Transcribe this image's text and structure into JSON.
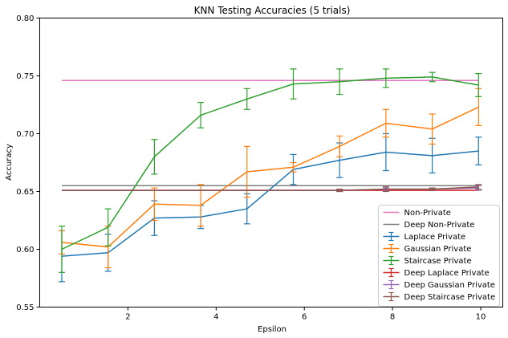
{
  "chart_data": {
    "type": "line",
    "title": "KNN Testing Accuracies (5 trials)",
    "xlabel": "Epsilon",
    "ylabel": "Accuracy",
    "xlim": [
      0.0,
      10.5
    ],
    "ylim": [
      0.55,
      0.8
    ],
    "xticks": [
      "2",
      "4",
      "6",
      "8",
      "10"
    ],
    "xtick_values": [
      2,
      4,
      6,
      8,
      10
    ],
    "yticks": [
      "0.55",
      "0.60",
      "0.65",
      "0.70",
      "0.75",
      "0.80"
    ],
    "ytick_values": [
      0.55,
      0.6,
      0.65,
      0.7,
      0.75,
      0.8
    ],
    "grid": false,
    "legend_position": "lower-right",
    "x": [
      0.5,
      1.55,
      2.6,
      3.65,
      4.7,
      5.75,
      6.8,
      7.85,
      8.9,
      9.95
    ],
    "horizontal_lines": [
      {
        "name": "Non-Private",
        "value": 0.746,
        "color": "#e377c2"
      },
      {
        "name": "Deep Non-Private",
        "value": 0.655,
        "color": "#7f7f7f"
      }
    ],
    "series": [
      {
        "name": "Laplace Private",
        "color": "#1f77b4",
        "values": [
          0.594,
          0.597,
          0.627,
          0.628,
          0.635,
          0.669,
          0.677,
          0.684,
          0.681,
          0.685
        ],
        "errors": [
          0.022,
          0.016,
          0.015,
          0.01,
          0.013,
          0.013,
          0.015,
          0.016,
          0.015,
          0.012
        ]
      },
      {
        "name": "Gaussian Private",
        "color": "#ff7f0e",
        "values": [
          0.606,
          0.602,
          0.639,
          0.638,
          0.667,
          0.671,
          0.689,
          0.709,
          0.704,
          0.723
        ],
        "errors": [
          0.01,
          0.018,
          0.014,
          0.018,
          0.022,
          0.004,
          0.009,
          0.012,
          0.013,
          0.016
        ]
      },
      {
        "name": "Staircase Private",
        "color": "#2ca02c",
        "values": [
          0.6,
          0.619,
          0.68,
          0.716,
          0.73,
          0.743,
          0.745,
          0.748,
          0.749,
          0.742
        ],
        "errors": [
          0.02,
          0.016,
          0.015,
          0.011,
          0.009,
          0.013,
          0.011,
          0.008,
          0.004,
          0.01
        ]
      },
      {
        "name": "Deep Laplace Private",
        "color": "#d62728",
        "values": [
          0.651,
          0.651,
          0.651,
          0.651,
          0.651,
          0.651,
          0.651,
          0.651,
          0.651,
          0.651
        ],
        "errors": [
          0.0,
          0.0,
          0.0,
          0.0,
          0.0,
          0.0,
          0.0,
          0.0,
          0.0,
          0.0
        ]
      },
      {
        "name": "Deep Gaussian Private",
        "color": "#9467bd",
        "values": [
          0.651,
          0.651,
          0.651,
          0.651,
          0.651,
          0.651,
          0.651,
          0.652,
          0.652,
          0.653
        ],
        "errors": [
          0.0,
          0.0,
          0.0,
          0.0,
          0.0,
          0.0,
          0.001,
          0.001,
          0.001,
          0.002
        ]
      },
      {
        "name": "Deep Staircase Private",
        "color": "#8c564b",
        "values": [
          0.651,
          0.651,
          0.651,
          0.651,
          0.651,
          0.651,
          0.651,
          0.652,
          0.652,
          0.654
        ],
        "errors": [
          0.0,
          0.0,
          0.0,
          0.0,
          0.0,
          0.0,
          0.001,
          0.002,
          0.001,
          0.002
        ]
      }
    ]
  }
}
